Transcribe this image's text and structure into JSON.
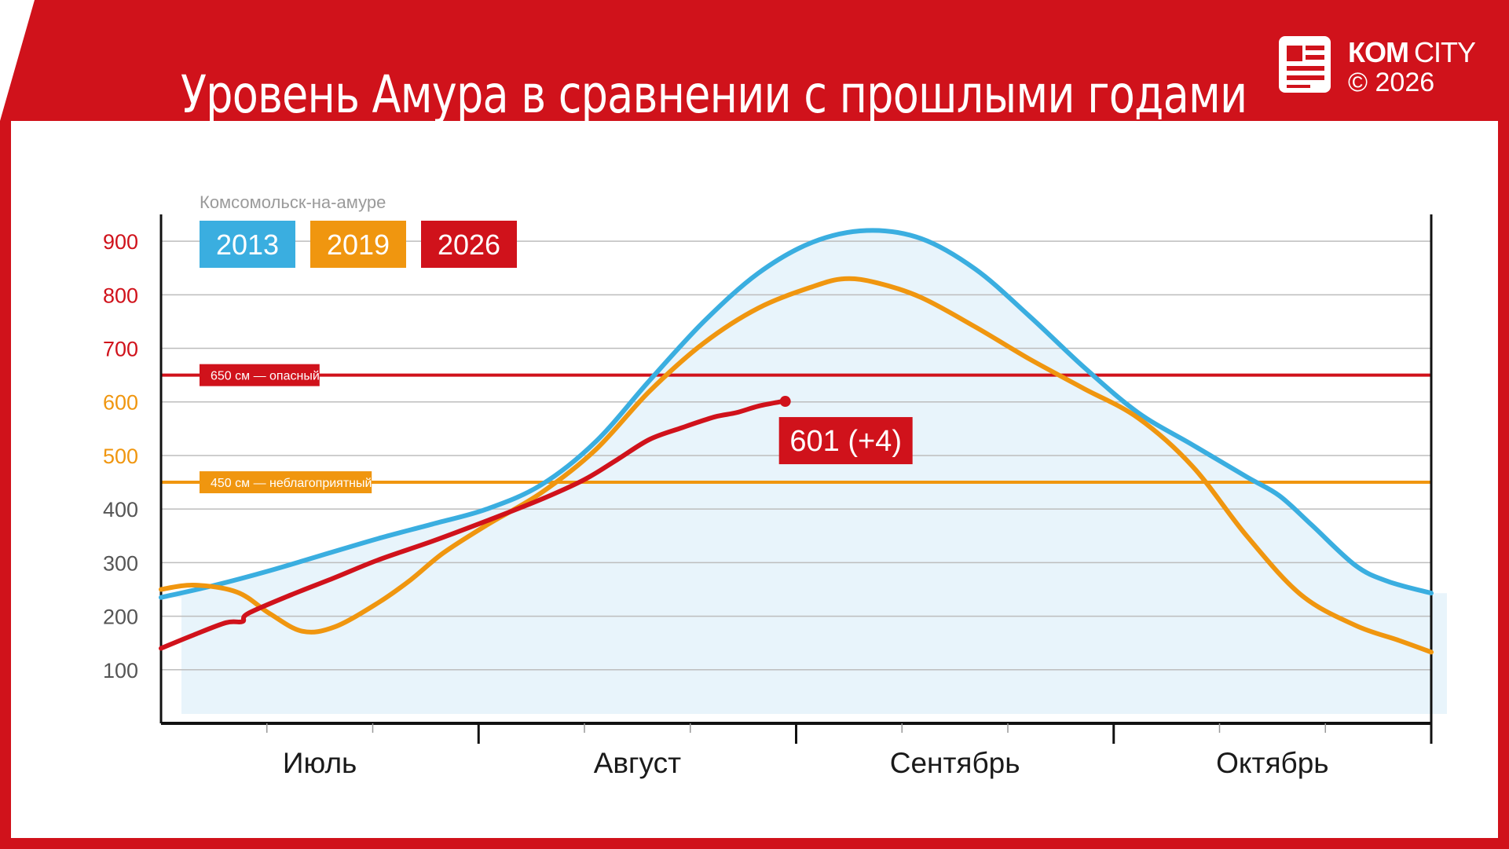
{
  "header": {
    "title": "Уровень Амура в сравнении с прошлыми годами",
    "logo_brand_bold": "КОМ",
    "logo_brand_regular": "CITY",
    "logo_copyright": "© 2026"
  },
  "colors": {
    "brand_red": "#d0121b",
    "series_2013": "#3aaee0",
    "series_2019": "#f0960f",
    "series_2026": "#d0121b",
    "area_fill": "#e8f4fb"
  },
  "chart_data": {
    "type": "line",
    "subtitle": "Комсомольск-на-амуре",
    "x_labels": [
      "Июль",
      "Август",
      "Сентябрь",
      "Октябрь"
    ],
    "xlim": [
      0,
      11.7
    ],
    "ylim": [
      0,
      950
    ],
    "y_ticks": [
      100,
      200,
      300,
      400,
      500,
      600,
      700,
      800,
      900
    ],
    "y_tick_colors": {
      "600": "#f0960f",
      "500": "#f0960f",
      "700": "#d0121b",
      "800": "#d0121b",
      "900": "#d0121b",
      "default": "#555555"
    },
    "grid": true,
    "legend": [
      {
        "name": "2013",
        "color": "#3aaee0"
      },
      {
        "name": "2019",
        "color": "#f0960f"
      },
      {
        "name": "2026",
        "color": "#d0121b"
      }
    ],
    "thresholds": [
      {
        "value": 650,
        "label": "650 см — опасный",
        "color": "#d0121b"
      },
      {
        "value": 450,
        "label": "450 см — неблагоприятный",
        "color": "#f0960f"
      }
    ],
    "series": [
      {
        "name": "2013",
        "color": "#3aaee0",
        "points": [
          [
            0,
            235
          ],
          [
            0.5,
            258
          ],
          [
            1,
            285
          ],
          [
            1.5,
            315
          ],
          [
            2,
            345
          ],
          [
            2.5,
            372
          ],
          [
            3,
            400
          ],
          [
            3.5,
            445
          ],
          [
            4,
            525
          ],
          [
            4.5,
            640
          ],
          [
            5,
            750
          ],
          [
            5.5,
            840
          ],
          [
            6,
            898
          ],
          [
            6.5,
            920
          ],
          [
            7,
            905
          ],
          [
            7.5,
            848
          ],
          [
            8,
            760
          ],
          [
            8.5,
            665
          ],
          [
            9,
            580
          ],
          [
            9.5,
            520
          ],
          [
            10,
            460
          ],
          [
            10.3,
            425
          ],
          [
            10.6,
            370
          ],
          [
            11,
            295
          ],
          [
            11.3,
            265
          ],
          [
            11.7,
            243
          ]
        ]
      },
      {
        "name": "2019",
        "color": "#f0960f",
        "points": [
          [
            0,
            250
          ],
          [
            0.3,
            258
          ],
          [
            0.7,
            245
          ],
          [
            1.0,
            205
          ],
          [
            1.3,
            172
          ],
          [
            1.6,
            180
          ],
          [
            2.0,
            225
          ],
          [
            2.3,
            268
          ],
          [
            2.6,
            318
          ],
          [
            3.0,
            370
          ],
          [
            3.5,
            430
          ],
          [
            4.0,
            510
          ],
          [
            4.5,
            620
          ],
          [
            5.0,
            710
          ],
          [
            5.5,
            775
          ],
          [
            6.0,
            815
          ],
          [
            6.3,
            830
          ],
          [
            6.6,
            822
          ],
          [
            7.0,
            795
          ],
          [
            7.5,
            740
          ],
          [
            8.0,
            680
          ],
          [
            8.5,
            625
          ],
          [
            9.0,
            570
          ],
          [
            9.5,
            480
          ],
          [
            10.0,
            350
          ],
          [
            10.5,
            240
          ],
          [
            11.0,
            183
          ],
          [
            11.4,
            155
          ],
          [
            11.7,
            133
          ]
        ]
      },
      {
        "name": "2026",
        "color": "#d0121b",
        "points": [
          [
            0,
            140
          ],
          [
            0.3,
            165
          ],
          [
            0.6,
            188
          ],
          [
            0.75,
            190
          ],
          [
            0.8,
            205
          ],
          [
            1.2,
            240
          ],
          [
            1.6,
            272
          ],
          [
            2.0,
            305
          ],
          [
            2.5,
            340
          ],
          [
            3.0,
            378
          ],
          [
            3.5,
            418
          ],
          [
            3.9,
            455
          ],
          [
            4.2,
            492
          ],
          [
            4.5,
            530
          ],
          [
            4.8,
            552
          ],
          [
            5.1,
            572
          ],
          [
            5.3,
            580
          ],
          [
            5.5,
            592
          ],
          [
            5.7,
            600
          ],
          [
            5.75,
            601
          ]
        ]
      }
    ],
    "last_point_label": "601 (+4)",
    "last_point": [
      5.75,
      601
    ]
  }
}
